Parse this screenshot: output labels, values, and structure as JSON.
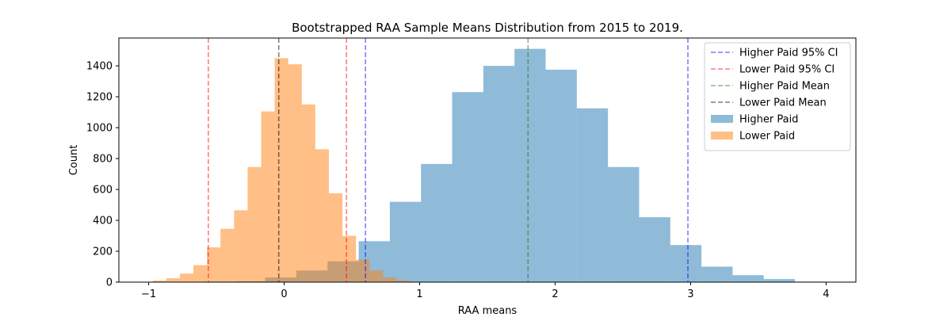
{
  "chart_data": {
    "type": "bar",
    "title": "Bootstrapped RAA Sample Means Distribution from 2015 to 2019.",
    "xlabel": "RAA means",
    "ylabel": "Count",
    "xlim": [
      -1.22,
      4.22
    ],
    "ylim": [
      0,
      1580
    ],
    "xticks": [
      -1,
      0,
      1,
      2,
      3,
      4
    ],
    "yticks": [
      0,
      200,
      400,
      600,
      800,
      1000,
      1200,
      1400
    ],
    "legend_position": "top-right",
    "histograms": [
      {
        "name": "Higher Paid",
        "color": "#1f77b4",
        "opacity": 0.5,
        "bins": [
          {
            "x0": -0.6,
            "x1": -0.37,
            "count": 3
          },
          {
            "x0": -0.37,
            "x1": -0.14,
            "count": 5
          },
          {
            "x0": -0.14,
            "x1": 0.09,
            "count": 30
          },
          {
            "x0": 0.09,
            "x1": 0.32,
            "count": 75
          },
          {
            "x0": 0.32,
            "x1": 0.55,
            "count": 135
          },
          {
            "x0": 0.55,
            "x1": 0.78,
            "count": 265
          },
          {
            "x0": 0.78,
            "x1": 1.01,
            "count": 520
          },
          {
            "x0": 1.01,
            "x1": 1.24,
            "count": 765
          },
          {
            "x0": 1.24,
            "x1": 1.47,
            "count": 1230
          },
          {
            "x0": 1.47,
            "x1": 1.7,
            "count": 1400
          },
          {
            "x0": 1.7,
            "x1": 1.93,
            "count": 1510
          },
          {
            "x0": 1.93,
            "x1": 2.16,
            "count": 1375
          },
          {
            "x0": 2.16,
            "x1": 2.39,
            "count": 1125
          },
          {
            "x0": 2.39,
            "x1": 2.62,
            "count": 745
          },
          {
            "x0": 2.62,
            "x1": 2.85,
            "count": 420
          },
          {
            "x0": 2.85,
            "x1": 3.08,
            "count": 240
          },
          {
            "x0": 3.08,
            "x1": 3.31,
            "count": 100
          },
          {
            "x0": 3.31,
            "x1": 3.54,
            "count": 45
          },
          {
            "x0": 3.54,
            "x1": 3.77,
            "count": 20
          },
          {
            "x0": 3.77,
            "x1": 4.0,
            "count": 3
          }
        ]
      },
      {
        "name": "Lower Paid",
        "color": "#ff7f0e",
        "opacity": 0.5,
        "bins": [
          {
            "x0": -0.97,
            "x1": -0.87,
            "count": 10
          },
          {
            "x0": -0.87,
            "x1": -0.77,
            "count": 25
          },
          {
            "x0": -0.77,
            "x1": -0.67,
            "count": 55
          },
          {
            "x0": -0.67,
            "x1": -0.57,
            "count": 110
          },
          {
            "x0": -0.57,
            "x1": -0.47,
            "count": 225
          },
          {
            "x0": -0.47,
            "x1": -0.37,
            "count": 345
          },
          {
            "x0": -0.37,
            "x1": -0.27,
            "count": 465
          },
          {
            "x0": -0.27,
            "x1": -0.17,
            "count": 745
          },
          {
            "x0": -0.17,
            "x1": -0.07,
            "count": 1105
          },
          {
            "x0": -0.07,
            "x1": 0.03,
            "count": 1450
          },
          {
            "x0": 0.03,
            "x1": 0.13,
            "count": 1410
          },
          {
            "x0": 0.13,
            "x1": 0.23,
            "count": 1150
          },
          {
            "x0": 0.23,
            "x1": 0.33,
            "count": 860
          },
          {
            "x0": 0.33,
            "x1": 0.43,
            "count": 575
          },
          {
            "x0": 0.43,
            "x1": 0.53,
            "count": 300
          },
          {
            "x0": 0.53,
            "x1": 0.63,
            "count": 145
          },
          {
            "x0": 0.63,
            "x1": 0.73,
            "count": 75
          },
          {
            "x0": 0.73,
            "x1": 0.83,
            "count": 30
          },
          {
            "x0": 0.83,
            "x1": 0.93,
            "count": 10
          }
        ]
      }
    ],
    "vlines": [
      {
        "name": "Higher Paid 95% CI",
        "color": "#0000ff",
        "x": [
          0.6,
          2.98
        ]
      },
      {
        "name": "Lower Paid 95% CI",
        "color": "#ff0000",
        "x": [
          -0.56,
          0.46
        ]
      },
      {
        "name": "Higher Paid Mean",
        "color": "#008000",
        "x": [
          1.8
        ]
      },
      {
        "name": "Lower Paid Mean",
        "color": "#000000",
        "x": [
          -0.04
        ]
      }
    ]
  }
}
